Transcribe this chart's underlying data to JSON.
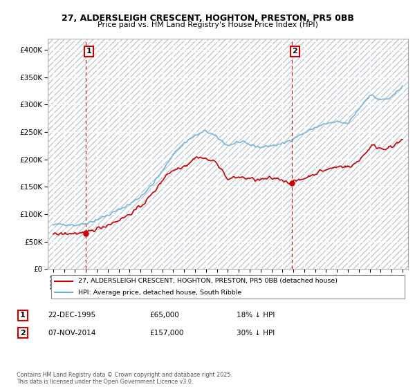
{
  "title_line1": "27, ALDERSLEIGH CRESCENT, HOGHTON, PRESTON, PR5 0BB",
  "title_line2": "Price paid vs. HM Land Registry's House Price Index (HPI)",
  "legend_label_red": "27, ALDERSLEIGH CRESCENT, HOGHTON, PRESTON, PR5 0BB (detached house)",
  "legend_label_blue": "HPI: Average price, detached house, South Ribble",
  "annotation1_label": "1",
  "annotation1_date": "22-DEC-1995",
  "annotation1_price": "£65,000",
  "annotation1_hpi": "18% ↓ HPI",
  "annotation2_label": "2",
  "annotation2_date": "07-NOV-2014",
  "annotation2_price": "£157,000",
  "annotation2_hpi": "30% ↓ HPI",
  "footer": "Contains HM Land Registry data © Crown copyright and database right 2025.\nThis data is licensed under the Open Government Licence v3.0.",
  "purchase1_year": 1995.97,
  "purchase1_price": 65000,
  "purchase2_year": 2014.85,
  "purchase2_price": 157000,
  "red_color": "#cc0000",
  "blue_color": "#6baed6",
  "background_color": "#ffffff",
  "grid_color": "#c8d8e8",
  "vline_color": "#cc0000",
  "ylim": [
    0,
    420000
  ],
  "yticks": [
    0,
    50000,
    100000,
    150000,
    200000,
    250000,
    300000,
    350000,
    400000
  ],
  "xlim_start": 1992.5,
  "xlim_end": 2025.5
}
